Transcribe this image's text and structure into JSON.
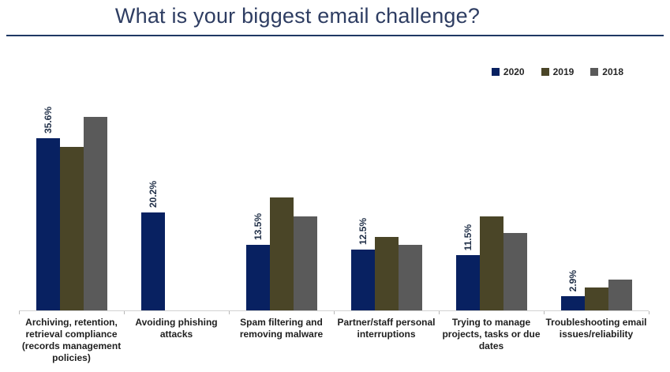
{
  "chart_data": {
    "type": "bar",
    "title": "What is your biggest email challenge?",
    "categories": [
      "Archiving, retention, retrieval compliance (records management policies)",
      "Avoiding phishing attacks",
      "Spam filtering and removing malware",
      "Partner/staff personal interruptions",
      "Trying to manage projects, tasks or due dates",
      "Troubleshooting email issues/reliability"
    ],
    "series": [
      {
        "name": "2020",
        "color": "#082161",
        "values": [
          35.6,
          20.2,
          13.5,
          12.5,
          11.5,
          2.9
        ],
        "data_labels": [
          "35.6%",
          "20.2%",
          "13.5%",
          "12.5%",
          "11.5%",
          "2.9%"
        ],
        "estimated": false
      },
      {
        "name": "2019",
        "color": "#4a4527",
        "values": [
          33.8,
          null,
          23.4,
          15.2,
          19.4,
          4.8
        ],
        "data_labels": null,
        "estimated": true
      },
      {
        "name": "2018",
        "color": "#5a5a5a",
        "values": [
          40.0,
          null,
          19.5,
          13.6,
          16.0,
          6.4
        ],
        "data_labels": null,
        "estimated": true
      }
    ],
    "xlabel": "",
    "ylabel": "",
    "ylim": [
      0,
      47.8
    ],
    "grid": false,
    "y_axis_visible": false,
    "x_axis_tick_marks": "outside, at category boundaries",
    "legend_position": "top-right",
    "data_label_style": "rotated 90 degrees above 2020 bars only",
    "accent_colors": {
      "title_text": "#2e3d62",
      "title_divider": "#1f3864",
      "axis_line": "#d2d2d2"
    }
  }
}
